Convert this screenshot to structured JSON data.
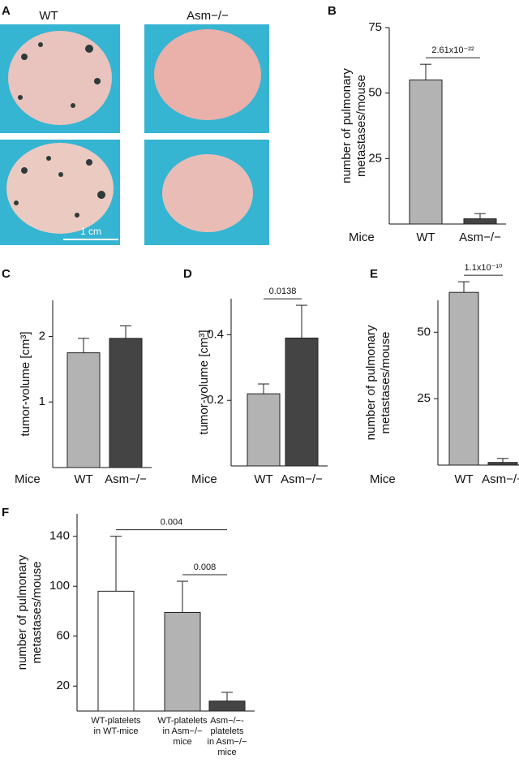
{
  "panel_a": {
    "label": "A",
    "columns": [
      "WT",
      "Asm−/−"
    ],
    "scale_bar": "1 cm"
  },
  "chart_data": [
    {
      "type": "bar",
      "panel": "B",
      "ylabel": [
        "number of pulmonary",
        "metastases/mouse"
      ],
      "x_axis_label": "Mice",
      "categories": [
        "WT",
        "Asm−/−"
      ],
      "values": [
        55,
        2
      ],
      "errors": [
        6,
        2
      ],
      "colors": [
        "#b3b3b3",
        "#444444"
      ],
      "ylim": [
        0,
        75
      ],
      "yticks": [
        25,
        50,
        75
      ],
      "annotations": [
        {
          "label": "2.61x10⁻²²",
          "pair": [
            0,
            1
          ]
        }
      ]
    },
    {
      "type": "bar",
      "panel": "C",
      "ylabel": [
        "tumor-volume [cm³]"
      ],
      "x_axis_label": "Mice",
      "categories": [
        "WT",
        "Asm−/−"
      ],
      "values": [
        1.75,
        1.97
      ],
      "errors": [
        0.22,
        0.19
      ],
      "colors": [
        "#b3b3b3",
        "#444444"
      ],
      "ylim": [
        0,
        2.55
      ],
      "yticks": [
        1,
        2
      ],
      "annotations": []
    },
    {
      "type": "bar",
      "panel": "D",
      "ylabel": [
        "tumor-volume [cm³]"
      ],
      "x_axis_label": "Mice",
      "categories": [
        "WT",
        "Asm−/−"
      ],
      "values": [
        0.22,
        0.39
      ],
      "errors": [
        0.03,
        0.1
      ],
      "colors": [
        "#b3b3b3",
        "#444444"
      ],
      "ylim": [
        0,
        0.51
      ],
      "yticks": [
        0.2,
        0.4
      ],
      "annotations": [
        {
          "label": "0.0138",
          "pair": [
            0,
            1
          ]
        }
      ]
    },
    {
      "type": "bar",
      "panel": "E",
      "ylabel": [
        "number of pulmonary",
        "metastases/mouse"
      ],
      "x_axis_label": "Mice",
      "categories": [
        "WT",
        "Asm−/−"
      ],
      "values": [
        65,
        1
      ],
      "errors": [
        4,
        1.5
      ],
      "colors": [
        "#b3b3b3",
        "#444444"
      ],
      "ylim": [
        0,
        62
      ],
      "yticks": [
        25,
        50
      ],
      "annotations": [
        {
          "label": "1.1x10⁻¹⁰",
          "pair": [
            0,
            1
          ]
        }
      ]
    },
    {
      "type": "bar",
      "panel": "F",
      "ylabel": [
        "number of pulmonary",
        "metastases/mouse"
      ],
      "categories": [
        [
          "WT-platelets",
          "in WT-mice"
        ],
        [
          "WT-platelets",
          "in Asm−/−",
          "mice"
        ],
        [
          "Asm−/−-",
          "platelets",
          "in Asm−/−",
          "mice"
        ]
      ],
      "values": [
        96,
        79,
        8
      ],
      "errors": [
        44,
        25,
        7
      ],
      "colors": [
        "#ffffff",
        "#b3b3b3",
        "#444444"
      ],
      "ylim": [
        0,
        158
      ],
      "yticks": [
        20,
        60,
        100,
        140
      ],
      "annotations": [
        {
          "label": "0.004",
          "pair": [
            0,
            2
          ]
        },
        {
          "label": "0.008",
          "pair": [
            1,
            2
          ]
        }
      ]
    }
  ]
}
